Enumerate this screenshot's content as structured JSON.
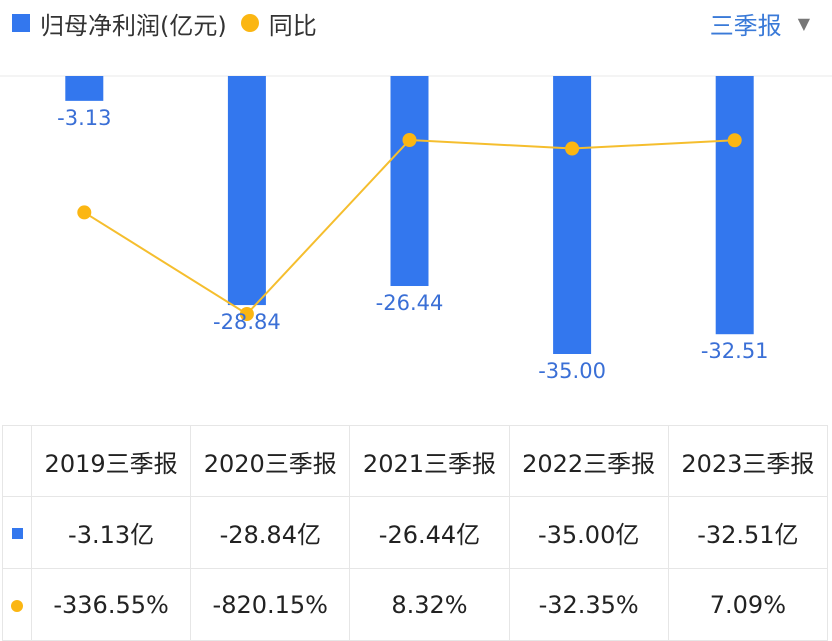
{
  "legend": {
    "series1": "归母净利润(亿元)",
    "series2": "同比"
  },
  "period_selector": {
    "label": "三季报",
    "icon": "caret-down-icon"
  },
  "colors": {
    "bar": "#3377ee",
    "line": "#f5be2e",
    "point": "#fbb612",
    "bar_label": "#3a6fd6",
    "positive": "#e84c4c",
    "negative": "#1aa36d"
  },
  "chart_data": {
    "type": "bar",
    "categories": [
      "2019三季报",
      "2020三季报",
      "2021三季报",
      "2022三季报",
      "2023三季报"
    ],
    "series": [
      {
        "name": "归母净利润(亿元)",
        "type": "bar",
        "values": [
          -3.13,
          -28.84,
          -26.44,
          -35.0,
          -32.51
        ],
        "labels": [
          "-3.13",
          "-28.84",
          "-26.44",
          "-35.00",
          "-32.51"
        ]
      },
      {
        "name": "同比",
        "type": "line",
        "values": [
          -336.55,
          -820.15,
          8.32,
          -32.35,
          7.09
        ]
      }
    ],
    "ylim": [
      -35.0,
      0
    ],
    "y2lim": [
      -820.15,
      8.32
    ]
  },
  "table": {
    "headers": [
      "2019三季报",
      "2020三季报",
      "2021三季报",
      "2022三季报",
      "2023三季报"
    ],
    "row1": [
      "-3.13亿",
      "-28.84亿",
      "-26.44亿",
      "-35.00亿",
      "-32.51亿"
    ],
    "row2": [
      "-336.55%",
      "-820.15%",
      "8.32%",
      "-32.35%",
      "7.09%"
    ]
  }
}
